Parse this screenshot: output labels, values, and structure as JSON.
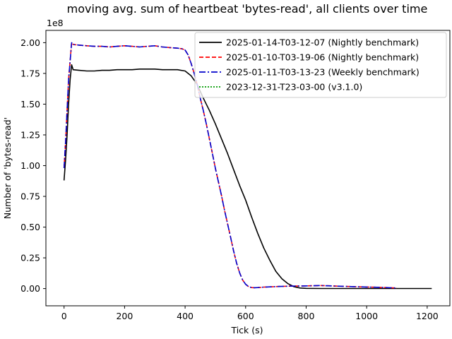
{
  "chart_data": {
    "type": "line",
    "title": "moving avg. sum of heartbeat 'bytes-read', all clients over time",
    "xlabel": "Tick (s)",
    "ylabel": "Number of 'bytes-read'",
    "y_offset_text": "1e8",
    "xlim": [
      -60,
      1275
    ],
    "ylim": [
      -14000000.0,
      210000000.0
    ],
    "x_ticks": [
      0,
      200,
      400,
      600,
      800,
      1000,
      1200
    ],
    "x_tick_labels": [
      "0",
      "200",
      "400",
      "600",
      "800",
      "1000",
      "1200"
    ],
    "y_ticks": [
      0,
      25000000.0,
      50000000.0,
      75000000.0,
      100000000.0,
      125000000.0,
      150000000.0,
      175000000.0,
      200000000.0
    ],
    "y_tick_labels": [
      "0.00",
      "0.25",
      "0.50",
      "0.75",
      "1.00",
      "1.25",
      "1.50",
      "1.75",
      "2.00"
    ],
    "grid": false,
    "legend_position": "top-right",
    "series": [
      {
        "name": "2025-01-14-T03-12-07 (Nightly benchmark)",
        "color": "#000000",
        "style": "solid",
        "x": [
          0,
          5,
          10,
          15,
          20,
          25,
          30,
          50,
          75,
          100,
          125,
          150,
          175,
          200,
          225,
          250,
          275,
          300,
          325,
          350,
          375,
          400,
          420,
          440,
          460,
          480,
          500,
          520,
          540,
          560,
          580,
          600,
          620,
          640,
          660,
          680,
          700,
          720,
          740,
          760,
          780,
          800,
          850,
          900,
          950,
          1000,
          1050,
          1100,
          1150,
          1200,
          1215
        ],
        "y": [
          88000000.0,
          105000000.0,
          125000000.0,
          150000000.0,
          170000000.0,
          182000000.0,
          178000000.0,
          177500000.0,
          177000000.0,
          177000000.0,
          177500000.0,
          177500000.0,
          178000000.0,
          178000000.0,
          178000000.0,
          178500000.0,
          178500000.0,
          178500000.0,
          178000000.0,
          178000000.0,
          178000000.0,
          177000000.0,
          173000000.0,
          166000000.0,
          155000000.0,
          145000000.0,
          134000000.0,
          122000000.0,
          110000000.0,
          97000000.0,
          84000000.0,
          72000000.0,
          58000000.0,
          45000000.0,
          33000000.0,
          23000000.0,
          14000000.0,
          8000000.0,
          4000000.0,
          1500000.0,
          500000.0,
          200000.0,
          100000.0,
          100000.0,
          100000.0,
          100000.0,
          100000.0,
          100000.0,
          100000.0,
          100000.0,
          100000.0
        ]
      },
      {
        "name": "2025-01-10-T03-19-06 (Nightly benchmark)",
        "color": "#ff0000",
        "style": "dashed",
        "x": [
          0,
          5,
          10,
          15,
          20,
          25,
          30,
          50,
          75,
          100,
          125,
          150,
          175,
          200,
          225,
          250,
          275,
          300,
          325,
          350,
          375,
          390,
          400,
          410,
          420,
          430,
          440,
          450,
          460,
          470,
          480,
          490,
          500,
          510,
          520,
          530,
          540,
          550,
          560,
          570,
          580,
          590,
          600,
          610,
          620,
          630,
          640,
          650,
          660,
          680,
          700,
          750,
          800,
          850,
          900,
          950,
          1000,
          1050,
          1100
        ],
        "y": [
          98000000.0,
          120000000.0,
          145000000.0,
          170000000.0,
          185000000.0,
          200000000.0,
          198500000.0,
          198000000.0,
          197500000.0,
          197000000.0,
          197000000.0,
          196500000.0,
          197000000.0,
          197500000.0,
          197000000.0,
          196500000.0,
          197000000.0,
          197500000.0,
          196500000.0,
          196000000.0,
          195500000.0,
          195000000.0,
          194000000.0,
          190000000.0,
          183000000.0,
          175000000.0,
          166000000.0,
          155000000.0,
          145000000.0,
          134000000.0,
          122000000.0,
          110000000.0,
          98000000.0,
          87000000.0,
          76000000.0,
          64000000.0,
          53000000.0,
          42000000.0,
          31000000.0,
          21000000.0,
          13000000.0,
          7000000.0,
          3500000.0,
          1500000.0,
          800000.0,
          700000.0,
          800000.0,
          1000000.0,
          1200000.0,
          1400000.0,
          1600000.0,
          2000000.0,
          2200000.0,
          2500000.0,
          2000000.0,
          1600000.0,
          1300000.0,
          1000000.0,
          500000.0
        ]
      },
      {
        "name": "2025-01-11-T03-13-23 (Weekly benchmark)",
        "color": "#0000cc",
        "style": "dashdot",
        "x": [
          0,
          5,
          10,
          15,
          20,
          25,
          30,
          50,
          75,
          100,
          125,
          150,
          175,
          200,
          225,
          250,
          275,
          300,
          325,
          350,
          375,
          390,
          400,
          410,
          420,
          430,
          440,
          450,
          460,
          470,
          480,
          490,
          500,
          510,
          520,
          530,
          540,
          550,
          560,
          570,
          580,
          590,
          600,
          610,
          620,
          630,
          640,
          650,
          660,
          680,
          700,
          750,
          800,
          850,
          900,
          950,
          1000,
          1050,
          1100
        ],
        "y": [
          98000000.0,
          120000000.0,
          145000000.0,
          170000000.0,
          185000000.0,
          200000000.0,
          198500000.0,
          198000000.0,
          197500000.0,
          197000000.0,
          197000000.0,
          196500000.0,
          197000000.0,
          197500000.0,
          197000000.0,
          196500000.0,
          197000000.0,
          197500000.0,
          196500000.0,
          196000000.0,
          195500000.0,
          195000000.0,
          194000000.0,
          190000000.0,
          183000000.0,
          175000000.0,
          166000000.0,
          155000000.0,
          145000000.0,
          134000000.0,
          122000000.0,
          110000000.0,
          98000000.0,
          87000000.0,
          76000000.0,
          64000000.0,
          53000000.0,
          42000000.0,
          31000000.0,
          21000000.0,
          13000000.0,
          7000000.0,
          3500000.0,
          1500000.0,
          800000.0,
          700000.0,
          800000.0,
          1000000.0,
          1200000.0,
          1400000.0,
          1600000.0,
          2000000.0,
          2200000.0,
          2500000.0,
          2000000.0,
          1600000.0,
          1300000.0,
          1000000.0,
          500000.0
        ]
      },
      {
        "name": "2023-12-31-T23-03-00 (v3.1.0)",
        "color": "#009900",
        "style": "dotted",
        "x": [],
        "y": []
      }
    ]
  }
}
